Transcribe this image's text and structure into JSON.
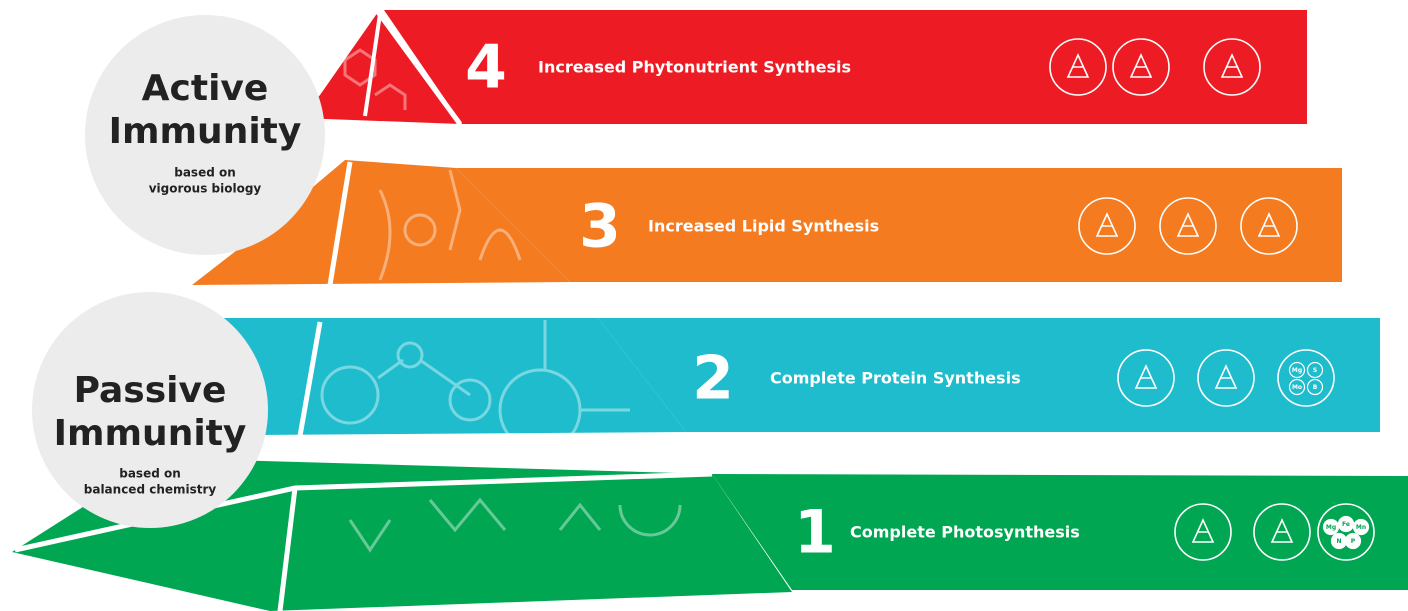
{
  "active": {
    "title_line1": "Active",
    "title_line2": "Immunity",
    "sub_line1": "based on",
    "sub_line2": "vigorous biology"
  },
  "passive": {
    "title_line1": "Passive",
    "title_line2": "Immunity",
    "sub_line1": "based on",
    "sub_line2": "balanced chemistry"
  },
  "levels": [
    {
      "number": 4,
      "label": "Increased Phytonutrient Synthesis"
    },
    {
      "number": 3,
      "label": "Increased Lipid Synthesis"
    },
    {
      "number": 2,
      "label": "Complete Protein Synthesis",
      "icon_text": [
        "Mg",
        "S",
        "Mo",
        "B"
      ]
    },
    {
      "number": 1,
      "label": "Complete Photosynthesis",
      "icon_text": [
        "Mg",
        "Fe",
        "Mn",
        "N",
        "P"
      ]
    }
  ]
}
